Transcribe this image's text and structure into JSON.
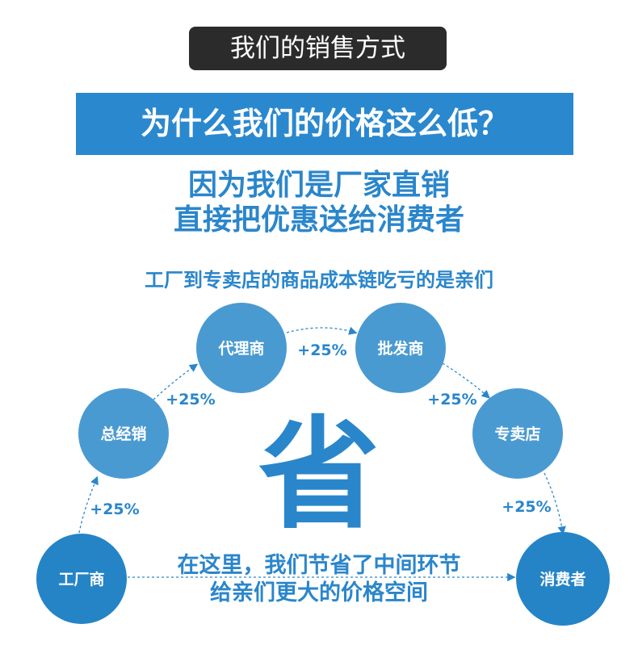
{
  "title": "我们的销售方式",
  "banner": "为什么我们的价格这么低？",
  "reason_line1": "因为我们是厂家直销",
  "reason_line2": "直接把优惠送给消费者",
  "chain_caption": "工厂到专卖店的商品成本链吃亏的是亲们",
  "nodes": [
    "工厂商",
    "总经销",
    "代理商",
    "批发商",
    "专卖店",
    "消费者"
  ],
  "markups": [
    "+25%",
    "+25%",
    "+25%",
    "+25%",
    "+25%"
  ],
  "center_char": "省",
  "bottom_line1": "在这里，我们节省了中间环节",
  "bottom_line2": "给亲们更大的价格空间",
  "colors": {
    "accent": "#2a88cf",
    "node": "#4a9ad2",
    "node_dark": "#2484c6",
    "title_bg": "#2b2b2b"
  }
}
